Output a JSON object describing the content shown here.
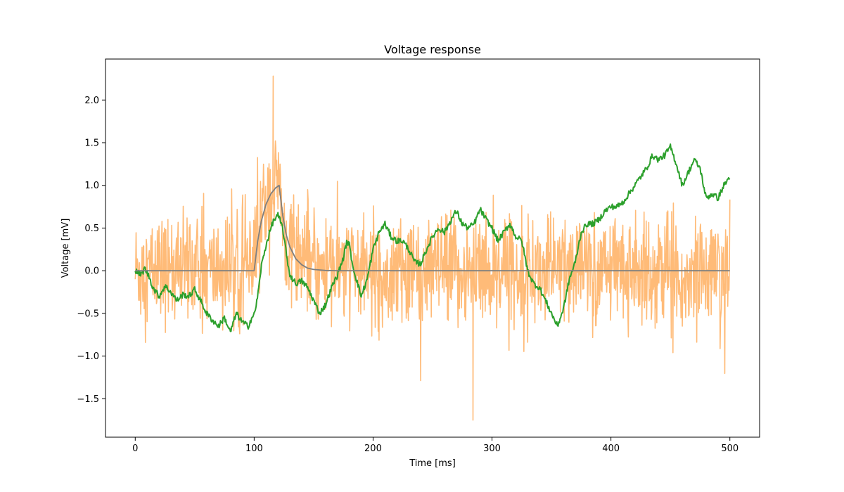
{
  "chart_data": {
    "type": "line",
    "title": "Voltage response",
    "xlabel": "Time [ms]",
    "ylabel": "Voltage [mV]",
    "xlim": [
      -25,
      525
    ],
    "ylim": [
      -1.95,
      2.48
    ],
    "xticks": [
      0,
      100,
      200,
      300,
      400,
      500
    ],
    "yticks": [
      -1.5,
      -1.0,
      -0.5,
      0.0,
      0.5,
      1.0,
      1.5,
      2.0
    ],
    "xtick_labels": [
      "0",
      "100",
      "200",
      "300",
      "400",
      "500"
    ],
    "ytick_labels": [
      "−1.5",
      "−1.0",
      "−0.5",
      "0.0",
      "0.5",
      "1.0",
      "1.5",
      "2.0"
    ],
    "grid": false,
    "colors": {
      "noisy": "#ffbb78",
      "filtered": "#2ca02c",
      "ideal": "#7f7f7f"
    },
    "series": [
      {
        "color": "noisy",
        "style": "noisy high-frequency trace, mean follows the ideal response",
        "x": [
          0,
          10,
          20,
          30,
          40,
          50,
          60,
          70,
          80,
          90,
          100,
          105,
          110,
          115,
          120,
          125,
          130,
          140,
          150,
          160,
          170,
          180,
          190,
          200,
          210,
          220,
          230,
          240,
          250,
          260,
          270,
          280,
          290,
          300,
          310,
          320,
          330,
          340,
          350,
          360,
          370,
          380,
          390,
          400,
          410,
          420,
          430,
          440,
          450,
          460,
          470,
          480,
          490,
          500
        ],
        "y": [
          0.0,
          0.0,
          0.0,
          0.0,
          0.0,
          0.0,
          0.0,
          0.0,
          0.0,
          0.0,
          0.0,
          0.55,
          0.8,
          0.93,
          1.0,
          0.55,
          0.3,
          0.1,
          0.03,
          0.0,
          0.0,
          0.0,
          0.0,
          0.0,
          0.0,
          0.0,
          0.0,
          0.0,
          0.0,
          0.0,
          0.0,
          0.0,
          0.0,
          0.0,
          0.0,
          0.0,
          0.0,
          0.0,
          0.0,
          0.0,
          0.0,
          0.0,
          0.0,
          0.0,
          0.0,
          0.0,
          0.0,
          0.0,
          0.0,
          0.0,
          0.0,
          0.0,
          0.0,
          0.0
        ],
        "y_extremes": {
          "max": 2.28,
          "max_at": 116,
          "min": -1.75,
          "min_at": 284
        }
      },
      {
        "color": "filtered",
        "x": [
          0,
          5,
          8,
          12,
          15,
          20,
          25,
          30,
          35,
          40,
          45,
          50,
          55,
          60,
          65,
          70,
          75,
          80,
          85,
          90,
          95,
          98,
          100,
          103,
          106,
          110,
          113,
          116,
          120,
          124,
          127,
          130,
          135,
          140,
          145,
          150,
          155,
          160,
          165,
          170,
          175,
          178,
          180,
          183,
          186,
          190,
          195,
          200,
          205,
          210,
          215,
          220,
          225,
          230,
          235,
          240,
          245,
          250,
          255,
          260,
          265,
          270,
          275,
          280,
          285,
          290,
          295,
          300,
          305,
          310,
          315,
          320,
          325,
          330,
          335,
          340,
          345,
          350,
          355,
          360,
          365,
          370,
          375,
          380,
          385,
          390,
          395,
          400,
          405,
          410,
          415,
          420,
          425,
          430,
          435,
          440,
          445,
          450,
          455,
          460,
          465,
          470,
          475,
          480,
          485,
          490,
          495,
          500
        ],
        "y": [
          0.0,
          -0.05,
          0.03,
          -0.08,
          -0.2,
          -0.3,
          -0.18,
          -0.25,
          -0.35,
          -0.28,
          -0.3,
          -0.22,
          -0.35,
          -0.5,
          -0.58,
          -0.65,
          -0.55,
          -0.72,
          -0.5,
          -0.6,
          -0.65,
          -0.55,
          -0.52,
          -0.3,
          0.05,
          0.3,
          0.45,
          0.58,
          0.65,
          0.5,
          0.2,
          -0.05,
          -0.15,
          -0.12,
          -0.2,
          -0.35,
          -0.5,
          -0.4,
          -0.2,
          -0.05,
          0.15,
          0.35,
          0.3,
          0.05,
          -0.1,
          -0.3,
          -0.1,
          0.25,
          0.45,
          0.55,
          0.4,
          0.35,
          0.35,
          0.25,
          0.1,
          0.08,
          0.25,
          0.4,
          0.5,
          0.45,
          0.58,
          0.7,
          0.55,
          0.5,
          0.55,
          0.72,
          0.6,
          0.5,
          0.35,
          0.45,
          0.55,
          0.4,
          0.35,
          0.0,
          -0.15,
          -0.2,
          -0.35,
          -0.5,
          -0.65,
          -0.45,
          -0.1,
          0.1,
          0.45,
          0.55,
          0.55,
          0.6,
          0.7,
          0.75,
          0.75,
          0.8,
          0.9,
          1.0,
          1.1,
          1.2,
          1.35,
          1.3,
          1.35,
          1.45,
          1.25,
          1.0,
          1.15,
          1.3,
          1.2,
          0.85,
          0.9,
          0.85,
          1.0,
          1.1
        ]
      },
      {
        "color": "ideal",
        "x": [
          0,
          100,
          103,
          106,
          110,
          114,
          118,
          121,
          124,
          127,
          130,
          135,
          140,
          145,
          150,
          160,
          170,
          180,
          500
        ],
        "y": [
          0.0,
          0.0,
          0.35,
          0.58,
          0.78,
          0.9,
          0.97,
          1.0,
          0.65,
          0.42,
          0.28,
          0.14,
          0.07,
          0.03,
          0.015,
          0.003,
          0.0,
          0.0,
          0.0
        ]
      }
    ]
  }
}
